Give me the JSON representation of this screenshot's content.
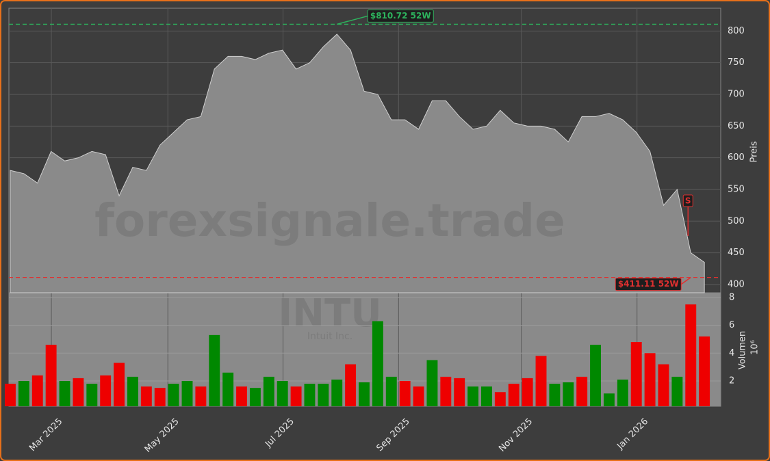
{
  "chart_data": [
    {
      "type": "area",
      "ticker": "INTU",
      "company": "Intuit Inc.",
      "watermark": "forexsignale.trade",
      "ylabel": "Preis",
      "color": "#8a8a8a",
      "line_color": "#d0d0d0",
      "categories": [
        null,
        null,
        null,
        null,
        null,
        null,
        null,
        null,
        null,
        null,
        null,
        null,
        null,
        null,
        null,
        null,
        null,
        null,
        null,
        null,
        null,
        null,
        null,
        null,
        null,
        null,
        null,
        null,
        null,
        null,
        null,
        null,
        null,
        null,
        null,
        null,
        null,
        null,
        null,
        null,
        null,
        null,
        null,
        null,
        null,
        null,
        null,
        null,
        null,
        null,
        null,
        null
      ],
      "values": [
        580,
        575,
        560,
        610,
        595,
        600,
        610,
        605,
        540,
        585,
        580,
        620,
        640,
        660,
        665,
        740,
        760,
        760,
        755,
        765,
        770,
        740,
        750,
        775,
        795,
        770,
        705,
        700,
        660,
        660,
        645,
        690,
        690,
        665,
        645,
        650,
        675,
        655,
        650,
        650,
        645,
        625,
        665,
        665,
        670,
        660,
        640,
        610,
        525,
        550,
        450,
        435
      ],
      "xlim": [
        -0.1,
        52.2
      ],
      "xticks": [
        {
          "value": 3.02,
          "label": "Mar 2025"
        },
        {
          "value": 11.58,
          "label": "May 2025"
        },
        {
          "value": 20.04,
          "label": "Jul 2025"
        },
        {
          "value": 28.53,
          "label": "Sep 2025"
        },
        {
          "value": 37.55,
          "label": "Nov 2025"
        },
        {
          "value": 46.05,
          "label": "Jan 2026"
        }
      ],
      "ylim": [
        387,
        836
      ],
      "yticks": [
        400,
        450,
        500,
        550,
        600,
        650,
        700,
        750,
        800
      ],
      "grid": true,
      "hlines": [
        {
          "value": 810.72,
          "label": "$810.72 52W",
          "color": "#2db35d",
          "at": 24
        },
        {
          "value": 411.11,
          "label": "$411.11 52W",
          "color": "#e03030",
          "at": 50
        }
      ],
      "signal": {
        "label": "S",
        "at": 50
      }
    },
    {
      "type": "bar",
      "ylabel": "Volumen",
      "unit": "10⁶",
      "values": [
        1.8,
        2.0,
        2.4,
        4.6,
        2.0,
        2.2,
        1.8,
        2.4,
        3.3,
        2.3,
        1.6,
        1.5,
        1.8,
        2.0,
        1.6,
        5.3,
        2.6,
        1.6,
        1.5,
        2.3,
        2.0,
        1.6,
        1.8,
        1.8,
        2.1,
        3.2,
        1.9,
        6.3,
        2.3,
        2.0,
        1.6,
        3.5,
        2.3,
        2.2,
        1.6,
        1.6,
        1.2,
        1.8,
        2.2,
        3.8,
        1.8,
        1.9,
        2.3,
        4.6,
        1.1,
        2.1,
        4.8,
        4.0,
        3.2,
        2.3,
        7.5,
        5.2
      ],
      "colors": [
        "#e00",
        "#080",
        "#e00",
        "#e00",
        "#080",
        "#e00",
        "#080",
        "#e00",
        "#e00",
        "#080",
        "#e00",
        "#e00",
        "#080",
        "#080",
        "#e00",
        "#080",
        "#080",
        "#e00",
        "#080",
        "#080",
        "#080",
        "#e00",
        "#080",
        "#080",
        "#080",
        "#e00",
        "#080",
        "#080",
        "#080",
        "#e00",
        "#e00",
        "#080",
        "#e00",
        "#e00",
        "#080",
        "#080",
        "#e00",
        "#e00",
        "#e00",
        "#e00",
        "#080",
        "#080",
        "#e00",
        "#080",
        "#080",
        "#080",
        "#e00",
        "#e00",
        "#e00",
        "#080",
        "#e00",
        "#e00"
      ],
      "ylim": [
        0.18,
        8.34
      ],
      "yticks": [
        2,
        4,
        6,
        8
      ]
    }
  ]
}
